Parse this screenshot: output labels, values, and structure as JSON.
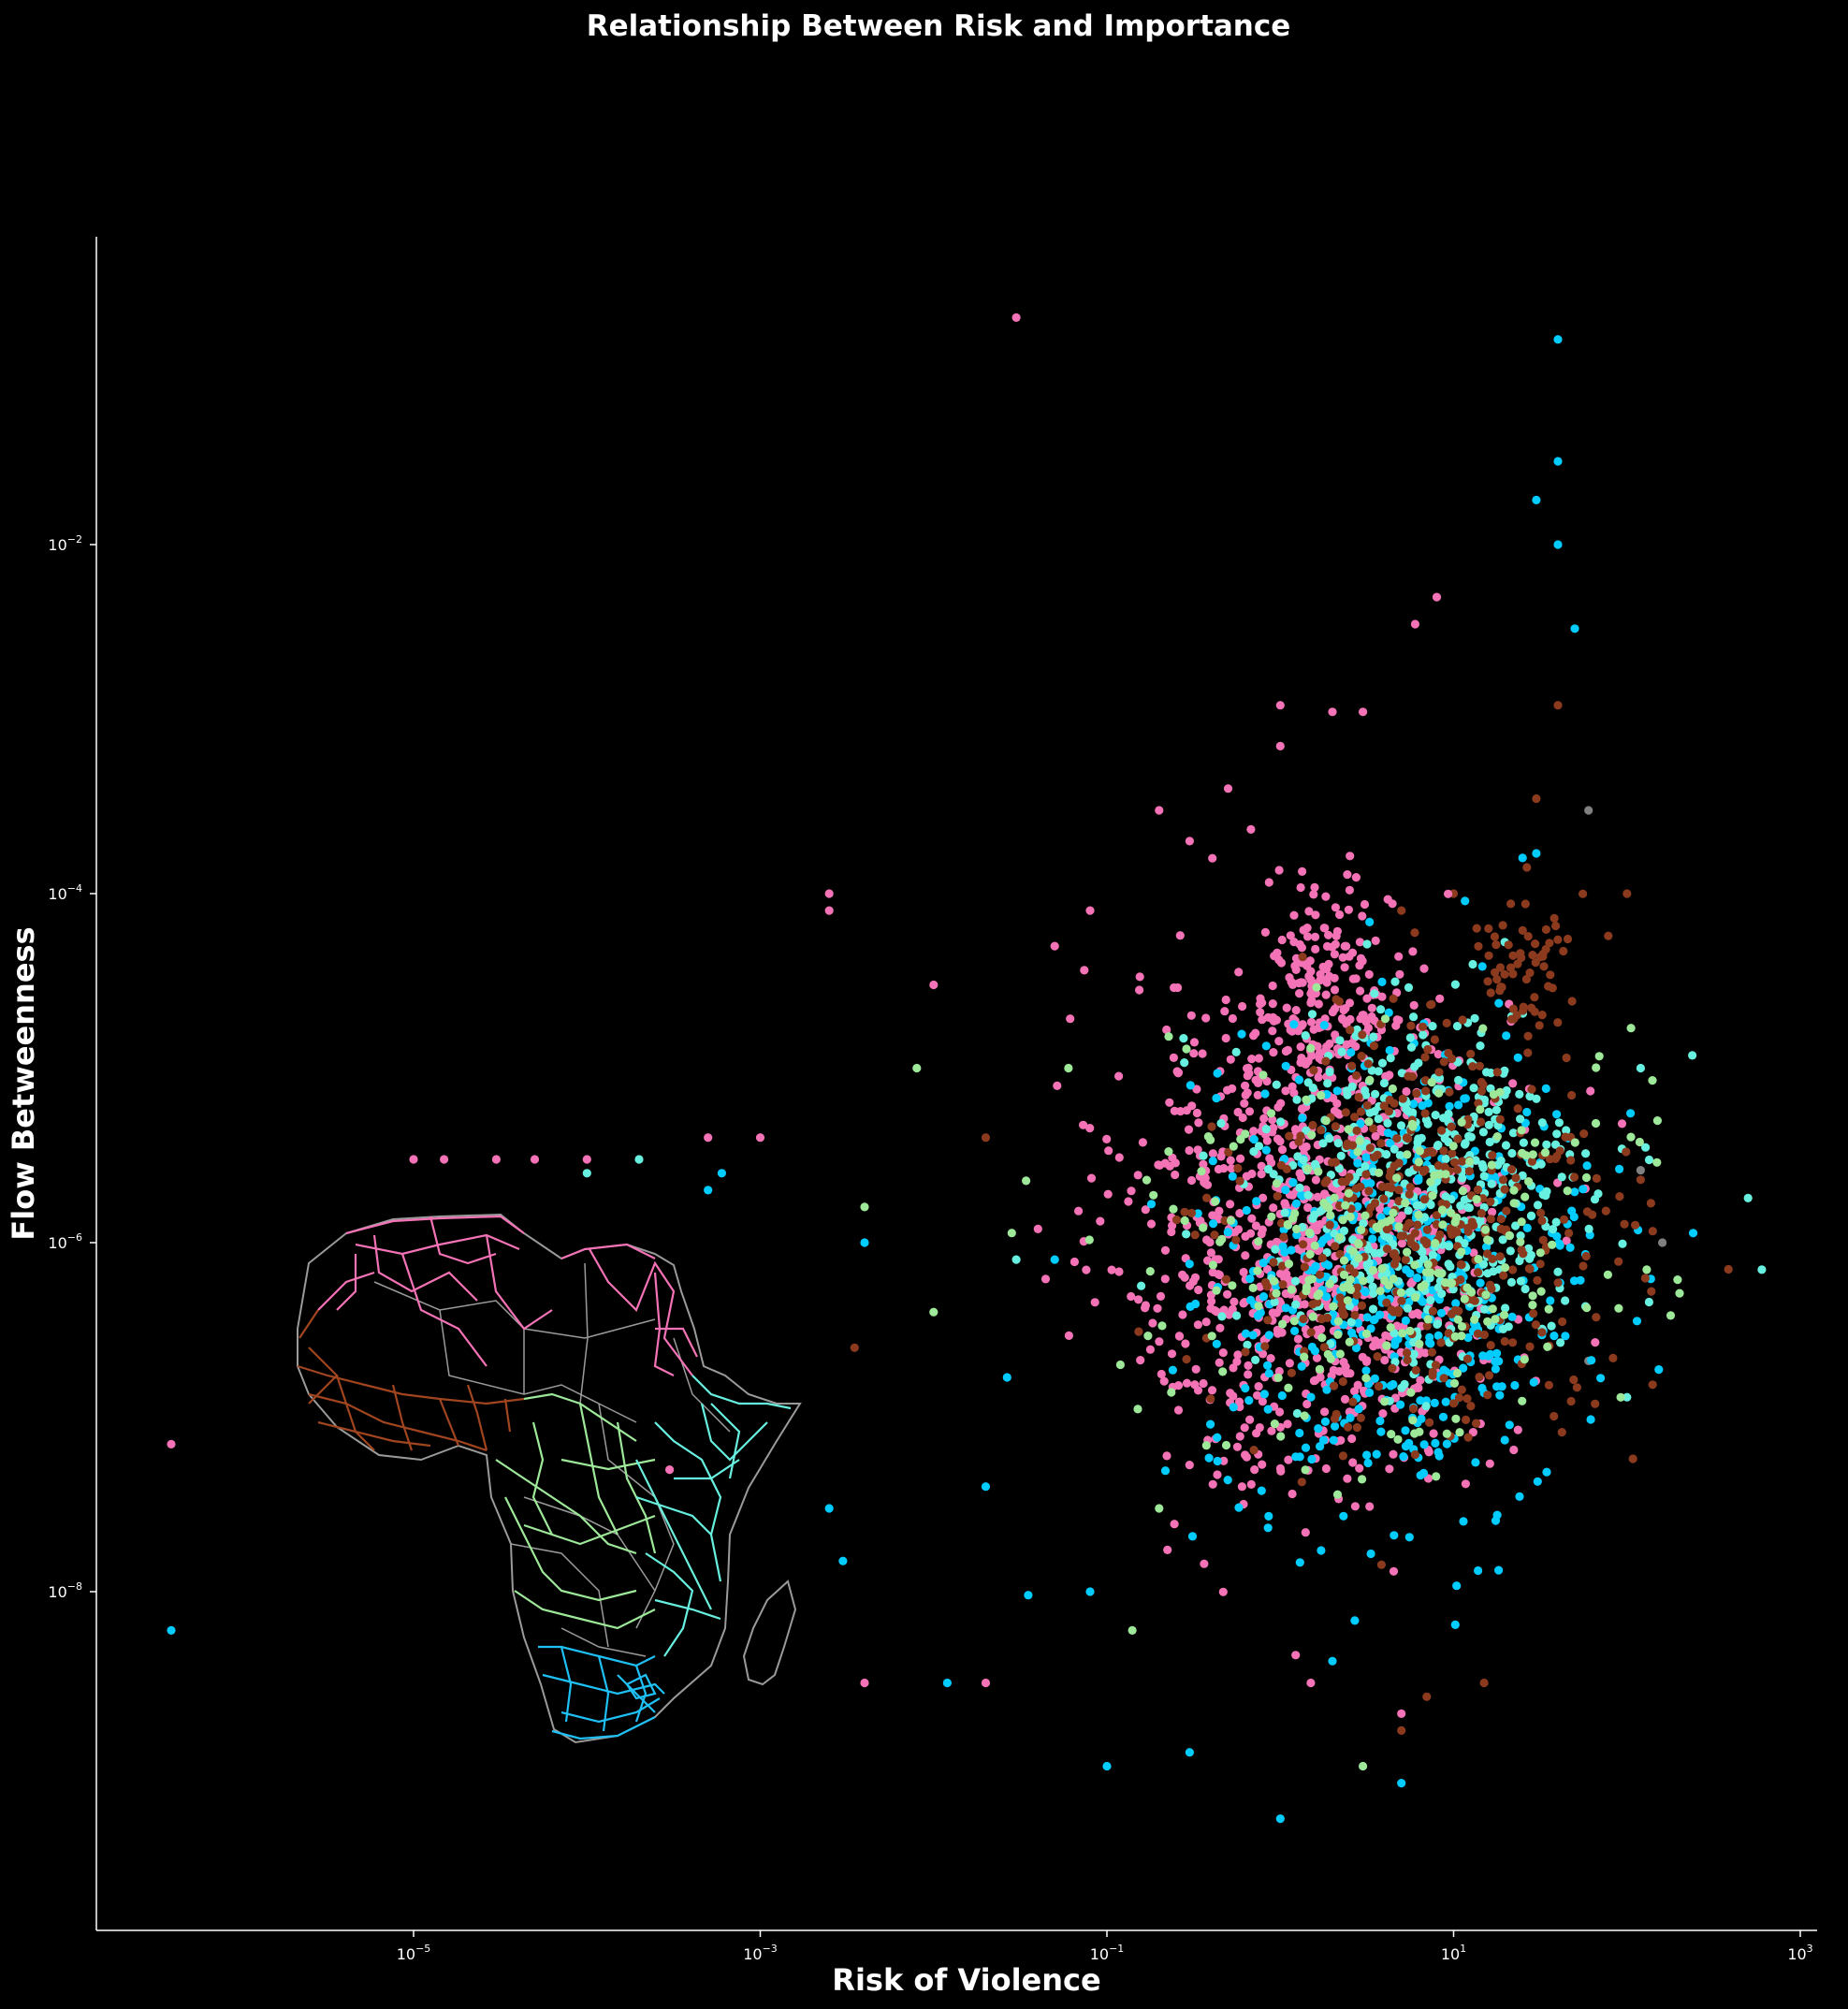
{
  "chart_data": {
    "type": "scatter",
    "title": "Relationship Between Risk and Importance",
    "xlabel": "Risk of Violence",
    "ylabel": "Flow Betweenness",
    "xscale": "log",
    "yscale": "log",
    "xlim": [
      2e-07,
      2000
    ],
    "ylim": [
      1e-10,
      0.6
    ],
    "x_ticks": [
      {
        "base": "10",
        "exp": "−5",
        "value": 1e-05
      },
      {
        "base": "10",
        "exp": "−3",
        "value": 0.001
      },
      {
        "base": "10",
        "exp": "−1",
        "value": 0.1
      },
      {
        "base": "10",
        "exp": "1",
        "value": 10
      },
      {
        "base": "10",
        "exp": "3",
        "value": 1000
      }
    ],
    "y_ticks": [
      {
        "base": "10",
        "exp": "−2",
        "value": 0.01
      },
      {
        "base": "10",
        "exp": "−4",
        "value": 0.0001
      },
      {
        "base": "10",
        "exp": "−6",
        "value": 1e-06
      },
      {
        "base": "10",
        "exp": "−8",
        "value": 1e-08
      }
    ],
    "grid": false,
    "legend": "none",
    "inset": "Africa map with regional networks colored to match the points",
    "regions": [
      {
        "color": "#f472b6",
        "points": [
          [
            0.03,
            0.2
          ],
          [
            8,
            0.005
          ],
          [
            6,
            0.0035
          ],
          [
            1,
            0.0012
          ],
          [
            2,
            0.0011
          ],
          [
            3,
            0.0011
          ],
          [
            1,
            0.0007
          ],
          [
            0.5,
            0.0004
          ],
          [
            0.0025,
            0.0001
          ],
          [
            0.0025,
            8e-05
          ],
          [
            0.01,
            3e-05
          ],
          [
            3e-05,
            3e-06
          ],
          [
            1e-05,
            3e-06
          ],
          [
            1.5e-05,
            3e-06
          ],
          [
            5e-05,
            3e-06
          ],
          [
            0.0001,
            3e-06
          ],
          [
            0.0005,
            4e-06
          ],
          [
            0.001,
            4e-06
          ],
          [
            4e-07,
            7e-08
          ],
          [
            0.0003,
            5e-08
          ],
          [
            0.004,
            3e-09
          ],
          [
            0.02,
            3e-09
          ],
          [
            5,
            2e-09
          ],
          [
            1.5,
            3e-09
          ],
          [
            0.05,
            5e-05
          ],
          [
            0.08,
            8e-05
          ],
          [
            0.3,
            0.0002
          ],
          [
            0.2,
            0.0003
          ]
        ]
      },
      {
        "color": "#00ccff",
        "points": [
          [
            40,
            0.15
          ],
          [
            40,
            0.03
          ],
          [
            30,
            0.018
          ],
          [
            40,
            0.01
          ],
          [
            50,
            0.0033
          ],
          [
            30,
            0.00017
          ],
          [
            25,
            0.00016
          ],
          [
            4e-07,
            6e-09
          ],
          [
            0.0006,
            2.5e-06
          ],
          [
            0.0005,
            2e-06
          ],
          [
            0.004,
            1e-06
          ],
          [
            0.0025,
            3e-08
          ],
          [
            0.003,
            1.5e-08
          ],
          [
            0.1,
            1e-09
          ],
          [
            0.3,
            1.2e-09
          ],
          [
            1,
            5e-10
          ],
          [
            0.012,
            3e-09
          ],
          [
            5,
            8e-10
          ],
          [
            0.08,
            1e-08
          ],
          [
            2,
            4e-09
          ],
          [
            0.02,
            4e-08
          ],
          [
            0.05,
            8e-07
          ]
        ]
      },
      {
        "color": "#8b3a1e",
        "points": [
          [
            40,
            0.0012
          ],
          [
            30,
            0.00035
          ],
          [
            100,
            0.0001
          ],
          [
            10,
            0.0001
          ],
          [
            5,
            8e-05
          ],
          [
            0.02,
            4e-06
          ],
          [
            0.0035,
            2.5e-07
          ],
          [
            7,
            2.5e-09
          ],
          [
            15,
            3e-09
          ],
          [
            5,
            1.6e-09
          ]
        ]
      },
      {
        "color": "#67f0e0",
        "points": [
          [
            120,
            1e-05
          ],
          [
            500,
            1.8e-06
          ],
          [
            600,
            7e-07
          ],
          [
            0.0001,
            2.5e-06
          ],
          [
            0.0002,
            3e-06
          ],
          [
            100,
            1.3e-07
          ],
          [
            0.03,
            8e-07
          ]
        ]
      },
      {
        "color": "#9ee89a",
        "points": [
          [
            0.004,
            1.6e-06
          ],
          [
            0.008,
            1e-05
          ],
          [
            0.01,
            4e-07
          ],
          [
            0.2,
            3e-08
          ],
          [
            0.14,
            6e-09
          ],
          [
            3,
            1e-09
          ],
          [
            150,
            5e-06
          ],
          [
            130,
            7e-07
          ],
          [
            0.06,
            1e-05
          ]
        ]
      },
      {
        "color": "#808080",
        "points": [
          [
            60,
            0.0003
          ],
          [
            160,
            1e-06
          ],
          [
            120,
            2.6e-06
          ],
          [
            60,
            2.1e-07
          ]
        ]
      }
    ]
  }
}
